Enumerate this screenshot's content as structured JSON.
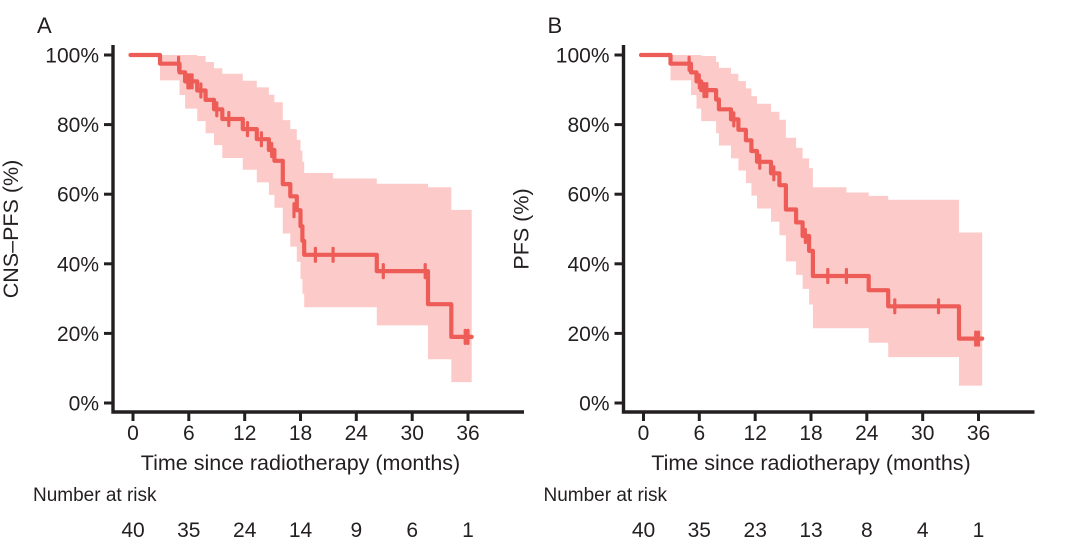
{
  "figure": {
    "background": "#ffffff",
    "curve_color": "#ee5c57",
    "band_color": "#fccbc9",
    "axis_color": "#231f20",
    "text_color": "#231f20"
  },
  "chart_data": [
    {
      "type": "line",
      "subtype": "kaplan-meier-step",
      "panel_label": "A",
      "ylabel": "CNS–PFS (%)",
      "xlabel": "Time since radiotherapy (months)",
      "xlim": [
        0,
        39
      ],
      "ylim": [
        0,
        100
      ],
      "grid": false,
      "legend": "none",
      "x_ticks": {
        "values": [
          0,
          6,
          12,
          18,
          24,
          30,
          36
        ],
        "labels": [
          "0",
          "6",
          "12",
          "18",
          "24",
          "30",
          "36"
        ]
      },
      "y_ticks": {
        "values": [
          100,
          80,
          60,
          40,
          20,
          0
        ],
        "labels": [
          "100%",
          "80%",
          "60%",
          "40%",
          "20%",
          "0%"
        ]
      },
      "risk_label": "Number at risk",
      "risk_values": [
        "40",
        "35",
        "24",
        "14",
        "9",
        "6",
        "1"
      ],
      "curve_start": {
        "t": 0,
        "s": 100
      },
      "end_time": 36.4,
      "steps": [
        [
          2.9,
          97.5,
          92.7,
          100
        ],
        [
          5.0,
          95.0,
          88.5,
          100
        ],
        [
          5.6,
          92.4,
          84.6,
          100
        ],
        [
          6.9,
          89.8,
          81.0,
          99.7
        ],
        [
          7.8,
          87.1,
          77.5,
          98.0
        ],
        [
          8.7,
          84.4,
          74.1,
          96.2
        ],
        [
          9.6,
          81.6,
          70.4,
          94.6
        ],
        [
          11.8,
          78.7,
          67.0,
          92.6
        ],
        [
          13.3,
          75.8,
          63.4,
          90.7
        ],
        [
          14.6,
          72.7,
          59.8,
          88.6
        ],
        [
          15.2,
          69.6,
          56.1,
          86.4
        ],
        [
          16.1,
          62.9,
          48.7,
          81.3
        ],
        [
          16.9,
          59.4,
          44.9,
          78.7
        ],
        [
          17.6,
          55.4,
          40.6,
          75.6
        ],
        [
          18.0,
          50.8,
          35.6,
          72.5
        ],
        [
          18.2,
          46.6,
          31.4,
          69.3
        ],
        [
          18.4,
          42.6,
          27.5,
          66.1
        ],
        [
          21.5,
          42.6,
          27.5,
          64.5
        ],
        [
          26.2,
          37.9,
          22.3,
          63.0
        ],
        [
          31.7,
          28.4,
          12.6,
          62.0
        ],
        [
          34.2,
          19.0,
          6.0,
          55.5
        ]
      ],
      "censors": [
        [
          4.9,
          97.5
        ],
        [
          5.9,
          92.4
        ],
        [
          6.1,
          92.4
        ],
        [
          6.35,
          92.4
        ],
        [
          7.3,
          89.8
        ],
        [
          9.0,
          84.4
        ],
        [
          10.3,
          81.6
        ],
        [
          12.3,
          78.7
        ],
        [
          13.8,
          75.8
        ],
        [
          14.9,
          72.7
        ],
        [
          17.3,
          55.4
        ],
        [
          19.6,
          42.6
        ],
        [
          21.5,
          42.6
        ],
        [
          26.9,
          37.9
        ],
        [
          31.4,
          37.9
        ],
        [
          35.7,
          19.0
        ],
        [
          36.0,
          19.0
        ]
      ]
    },
    {
      "type": "line",
      "subtype": "kaplan-meier-step",
      "panel_label": "B",
      "ylabel": "PFS (%)",
      "xlabel": "Time since radiotherapy (months)",
      "xlim": [
        0,
        39
      ],
      "ylim": [
        0,
        100
      ],
      "grid": false,
      "legend": "none",
      "x_ticks": {
        "values": [
          0,
          6,
          12,
          18,
          24,
          30,
          36
        ],
        "labels": [
          "0",
          "6",
          "12",
          "18",
          "24",
          "30",
          "36"
        ]
      },
      "y_ticks": {
        "values": [
          100,
          80,
          60,
          40,
          20,
          0
        ],
        "labels": [
          "100%",
          "80%",
          "60%",
          "40%",
          "20%",
          "0%"
        ]
      },
      "risk_label": "Number at risk",
      "risk_values": [
        "40",
        "35",
        "23",
        "13",
        "8",
        "4",
        "1"
      ],
      "curve_start": {
        "t": 0,
        "s": 100
      },
      "end_time": 36.4,
      "steps": [
        [
          2.9,
          97.5,
          92.7,
          100
        ],
        [
          5.1,
          95.0,
          88.5,
          100
        ],
        [
          5.7,
          92.4,
          84.6,
          100
        ],
        [
          6.2,
          89.9,
          81.0,
          99.7
        ],
        [
          7.8,
          87.2,
          77.5,
          98.0
        ],
        [
          8.1,
          84.4,
          74.0,
          96.3
        ],
        [
          9.4,
          81.5,
          70.3,
          94.6
        ],
        [
          10.2,
          78.5,
          66.8,
          92.5
        ],
        [
          11.0,
          75.5,
          63.2,
          90.4
        ],
        [
          11.6,
          72.4,
          59.6,
          88.2
        ],
        [
          12.2,
          69.3,
          55.9,
          86.0
        ],
        [
          13.7,
          66.0,
          52.1,
          83.7
        ],
        [
          14.6,
          62.6,
          48.2,
          81.4
        ],
        [
          15.3,
          55.6,
          40.7,
          76.2
        ],
        [
          16.4,
          51.9,
          36.8,
          73.3
        ],
        [
          17.1,
          48.0,
          32.8,
          70.3
        ],
        [
          17.8,
          43.7,
          28.3,
          67.5
        ],
        [
          18.2,
          36.5,
          21.5,
          62.0
        ],
        [
          21.8,
          36.5,
          21.5,
          60.5
        ],
        [
          24.2,
          32.4,
          17.3,
          59.5
        ],
        [
          26.3,
          27.8,
          13.2,
          58.4
        ],
        [
          33.9,
          18.5,
          5.0,
          49.0
        ]
      ],
      "censors": [
        [
          4.9,
          97.5
        ],
        [
          6.0,
          92.4
        ],
        [
          6.5,
          89.9
        ],
        [
          6.8,
          89.9
        ],
        [
          9.7,
          81.5
        ],
        [
          12.5,
          69.3
        ],
        [
          14.0,
          66.0
        ],
        [
          17.4,
          48.0
        ],
        [
          19.8,
          36.5
        ],
        [
          21.8,
          36.5
        ],
        [
          27.0,
          27.8
        ],
        [
          31.7,
          27.8
        ],
        [
          35.7,
          18.5
        ],
        [
          36.0,
          18.5
        ]
      ]
    }
  ]
}
